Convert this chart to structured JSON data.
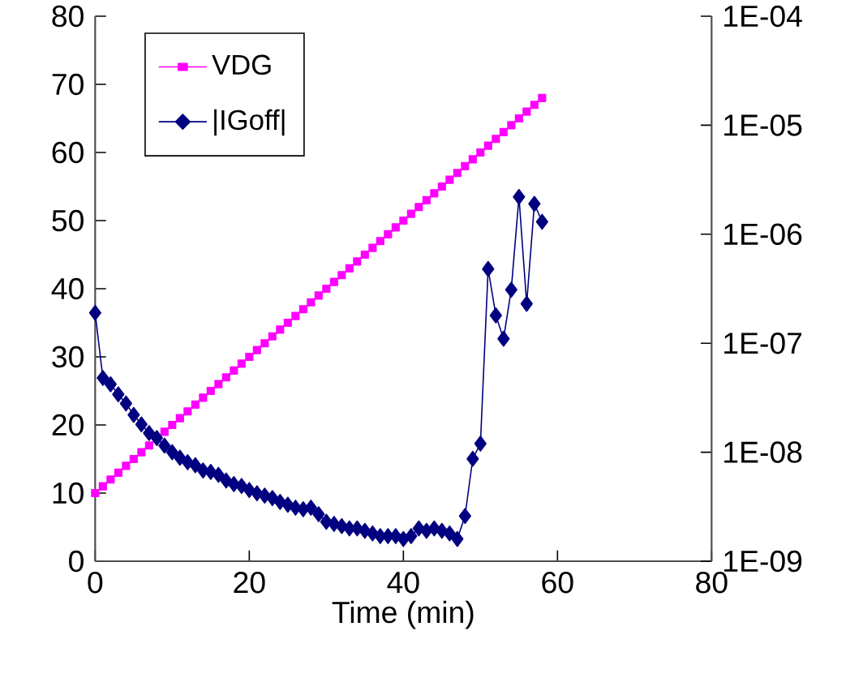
{
  "chart_data": {
    "type": "line",
    "xlabel": "Time (min)",
    "x": [
      0,
      1,
      2,
      3,
      4,
      5,
      6,
      7,
      8,
      9,
      10,
      11,
      12,
      13,
      14,
      15,
      16,
      17,
      18,
      19,
      20,
      21,
      22,
      23,
      24,
      25,
      26,
      27,
      28,
      29,
      30,
      31,
      32,
      33,
      34,
      35,
      36,
      37,
      38,
      39,
      40,
      41,
      42,
      43,
      44,
      45,
      46,
      47,
      48,
      49,
      50,
      51,
      52,
      53,
      54,
      55,
      56,
      57,
      58
    ],
    "series": [
      {
        "name": "VDG",
        "color": "#ff00ff",
        "marker": "square",
        "values": [
          10,
          11,
          12,
          13,
          14,
          15,
          16,
          17,
          18,
          19,
          20,
          21,
          22,
          23,
          24,
          25,
          26,
          27,
          28,
          29,
          30,
          31,
          32,
          33,
          34,
          35,
          36,
          37,
          38,
          39,
          40,
          41,
          42,
          43,
          44,
          45,
          46,
          47,
          48,
          49,
          50,
          51,
          52,
          53,
          54,
          55,
          56,
          57,
          58,
          59,
          60,
          61,
          62,
          63,
          64,
          65,
          66,
          67,
          68
        ]
      },
      {
        "name": "|IGoff|",
        "color": "#000080",
        "marker": "diamond",
        "axis": "y2",
        "values": [
          1.9e-07,
          4.8e-08,
          4.2e-08,
          3.4e-08,
          2.8e-08,
          2.2e-08,
          1.8e-08,
          1.5e-08,
          1.35e-08,
          1.15e-08,
          1e-08,
          8.9e-09,
          8.1e-09,
          7.6e-09,
          6.8e-09,
          6.6e-09,
          6.2e-09,
          5.5e-09,
          5.1e-09,
          4.9e-09,
          4.5e-09,
          4.2e-09,
          4e-09,
          3.8e-09,
          3.5e-09,
          3.3e-09,
          3.1e-09,
          3e-09,
          3.1e-09,
          2.7e-09,
          2.3e-09,
          2.2e-09,
          2.1e-09,
          2e-09,
          2e-09,
          1.9e-09,
          1.8e-09,
          1.7e-09,
          1.7e-09,
          1.7e-09,
          1.6e-09,
          1.7e-09,
          2e-09,
          1.9e-09,
          2e-09,
          1.9e-09,
          1.8e-09,
          1.6e-09,
          2.6e-09,
          8.7e-09,
          1.2e-08,
          4.8e-07,
          1.8e-07,
          1.1e-07,
          3.1e-07,
          2.2e-06,
          2.3e-07,
          1.9e-06,
          1.3e-06
        ]
      }
    ],
    "xlim": [
      0,
      80
    ],
    "xticks": [
      0,
      20,
      40,
      60,
      80
    ],
    "ylim": [
      0,
      80
    ],
    "yticks": [
      0,
      10,
      20,
      30,
      40,
      50,
      60,
      70,
      80
    ],
    "y2lim": [
      1e-09,
      0.0001
    ],
    "y2ticks": [
      {
        "value": 1e-09,
        "label": "1E-09"
      },
      {
        "value": 1e-08,
        "label": "1E-08"
      },
      {
        "value": 1e-07,
        "label": "1E-07"
      },
      {
        "value": 1e-06,
        "label": "1E-06"
      },
      {
        "value": 1e-05,
        "label": "1E-05"
      },
      {
        "value": 0.0001,
        "label": "1E-04"
      }
    ],
    "log": "y2",
    "grid": false,
    "legend": "top left"
  }
}
